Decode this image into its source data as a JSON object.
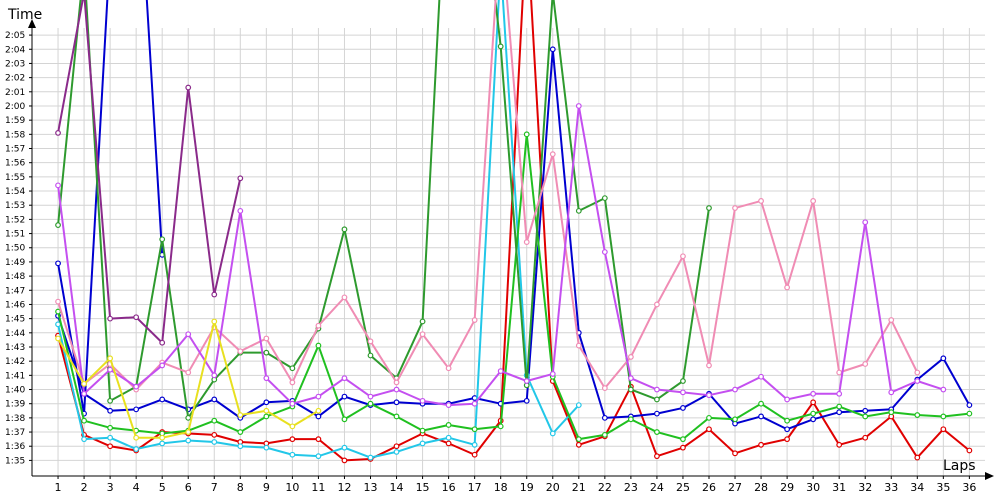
{
  "chart_data": {
    "type": "line",
    "title": "",
    "xlabel": "Laps",
    "ylabel": "Time",
    "grid": true,
    "legend": "none",
    "x": [
      1,
      2,
      3,
      4,
      5,
      6,
      7,
      8,
      9,
      10,
      11,
      12,
      13,
      14,
      15,
      16,
      17,
      18,
      19,
      20,
      21,
      22,
      23,
      24,
      25,
      26,
      27,
      28,
      29,
      30,
      31,
      32,
      33,
      34,
      35,
      36
    ],
    "x_range": [
      0,
      36.6
    ],
    "y_range_seconds": [
      93.9,
      125.5
    ],
    "yticks": [
      "1:35",
      "1:36",
      "1:37",
      "1:38",
      "1:39",
      "1:40",
      "1:41",
      "1:42",
      "1:43",
      "1:44",
      "1:45",
      "1:46",
      "1:47",
      "1:48",
      "1:49",
      "1:50",
      "1:51",
      "1:52",
      "1:53",
      "1:54",
      "1:55",
      "1:56",
      "1:57",
      "1:58",
      "1:59",
      "2:00",
      "2:01",
      "2:02",
      "2:03",
      "2:04",
      "2:05"
    ],
    "ytick_values_seconds": [
      95,
      96,
      97,
      98,
      99,
      100,
      101,
      102,
      103,
      104,
      105,
      106,
      107,
      108,
      109,
      110,
      111,
      112,
      113,
      114,
      115,
      116,
      117,
      118,
      119,
      120,
      121,
      122,
      123,
      124,
      125
    ],
    "series": [
      {
        "color": "#e00000",
        "values": [
          103.8,
          96.8,
          96.0,
          95.7,
          97.0,
          96.9,
          96.8,
          96.3,
          96.2,
          96.5,
          96.5,
          95.0,
          95.1,
          96.0,
          96.9,
          96.2,
          95.4,
          97.8,
          133.0,
          100.6,
          96.1,
          96.7,
          100.2,
          95.3,
          95.9,
          97.2,
          95.5,
          96.1,
          96.5,
          99.1,
          96.1,
          96.6,
          98.1,
          95.2,
          97.2,
          95.7
        ]
      },
      {
        "color": "#0000d0",
        "values": [
          108.9,
          98.3,
          131.0,
          140.0,
          109.5,
          null,
          null,
          null,
          null,
          null,
          null,
          null,
          null,
          null,
          null,
          null,
          null,
          null,
          null,
          null,
          null,
          null,
          null,
          null,
          null,
          null,
          null,
          null,
          null,
          null,
          null,
          null,
          null,
          null,
          null,
          null
        ]
      },
      {
        "color": "#0000d0",
        "values": [
          105.2,
          99.7,
          98.5,
          98.6,
          99.3,
          98.6,
          99.3,
          98.0,
          99.1,
          99.2,
          98.1,
          99.5,
          98.9,
          99.1,
          99.0,
          99.0,
          99.4,
          99.0,
          99.2,
          124.0,
          104.0,
          98.0,
          98.1,
          98.3,
          98.7,
          99.7,
          97.6,
          98.1,
          97.2,
          97.9,
          98.4,
          98.5,
          98.6,
          100.7,
          102.2,
          98.9
        ]
      },
      {
        "color": "#22c7e8",
        "values": [
          104.6,
          96.5,
          96.6,
          95.8,
          96.2,
          96.4,
          96.3,
          96.0,
          95.9,
          95.4,
          95.3,
          95.9,
          95.2,
          95.6,
          96.2,
          96.6,
          96.1,
          130.0,
          101.0,
          96.9,
          98.9,
          null,
          null,
          null,
          null,
          null,
          null,
          null,
          null,
          null,
          null,
          null,
          null,
          null,
          null,
          null
        ]
      },
      {
        "color": "#20c020",
        "values": [
          105.5,
          97.8,
          97.3,
          97.1,
          96.9,
          97.1,
          97.8,
          97.0,
          98.1,
          98.8,
          103.1,
          97.9,
          99.0,
          98.1,
          97.1,
          97.5,
          97.2,
          97.4,
          118.0,
          100.9,
          96.5,
          96.8,
          97.9,
          97.0,
          96.5,
          98.0,
          97.9,
          99.0,
          97.8,
          98.3,
          98.8,
          98.1,
          98.4,
          98.2,
          98.1,
          98.3
        ]
      },
      {
        "color": "#2e9a2e",
        "values": [
          111.6,
          130.0,
          99.2,
          100.2,
          110.6,
          98.0,
          100.7,
          102.6,
          102.6,
          101.5,
          104.3,
          111.3,
          102.4,
          100.8,
          104.8,
          140.0,
          140.0,
          124.2,
          100.3,
          128.0,
          112.6,
          113.5,
          100.0,
          99.3,
          100.6,
          112.8,
          null,
          null,
          null,
          null,
          null,
          null,
          null,
          null,
          null,
          null
        ]
      },
      {
        "color": "#f08cb4",
        "values": [
          106.2,
          100.4,
          101.8,
          100.0,
          101.9,
          101.2,
          104.4,
          102.7,
          103.6,
          100.5,
          104.5,
          106.5,
          103.4,
          100.5,
          103.9,
          101.5,
          104.9,
          133.0,
          110.4,
          116.6,
          103.1,
          100.1,
          102.3,
          106.0,
          109.4,
          101.7,
          112.8,
          113.3,
          107.2,
          113.3,
          101.2,
          101.8,
          104.9,
          101.2,
          null,
          null
        ]
      },
      {
        "color": "#c44ff0",
        "values": [
          114.4,
          99.7,
          101.4,
          100.2,
          101.7,
          103.9,
          101.0,
          112.6,
          100.8,
          99.0,
          99.5,
          100.8,
          99.5,
          100.0,
          99.2,
          98.9,
          99.0,
          101.3,
          100.6,
          101.1,
          120.0,
          109.7,
          100.8,
          100.0,
          99.8,
          99.6,
          100.0,
          100.9,
          99.3,
          99.7,
          99.7,
          111.8,
          99.8,
          100.6,
          100.0,
          null
        ]
      },
      {
        "color": "#8a2a8a",
        "values": [
          118.1,
          128.0,
          105.0,
          105.1,
          103.3,
          121.3,
          106.7,
          114.9,
          null,
          null,
          null,
          null,
          null,
          null,
          null,
          null,
          null,
          null,
          null,
          null,
          null,
          null,
          null,
          null,
          null,
          null,
          null,
          null,
          null,
          null,
          null,
          null,
          null,
          null,
          null,
          null
        ]
      },
      {
        "color": "#e8e020",
        "values": [
          103.6,
          100.4,
          102.2,
          96.6,
          96.6,
          97.0,
          104.8,
          98.2,
          98.5,
          97.4,
          98.5,
          null,
          null,
          null,
          null,
          null,
          null,
          null,
          null,
          null,
          null,
          null,
          null,
          null,
          null,
          null,
          null,
          null,
          null,
          null,
          null,
          null,
          null,
          null,
          null,
          null
        ]
      }
    ]
  }
}
